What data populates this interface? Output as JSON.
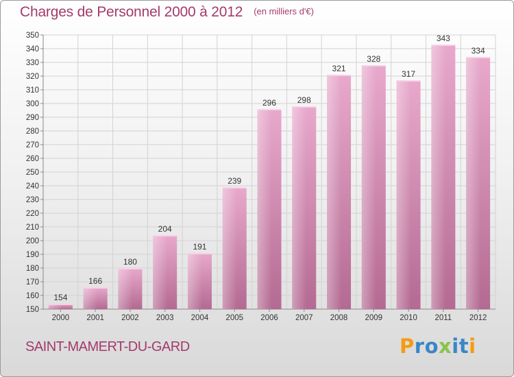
{
  "header": {
    "title": "Charges de Personnel 2000 à 2012",
    "unit": "(en milliers d'€)"
  },
  "footer": {
    "town": "SAINT-MAMERT-DU-GARD",
    "brand_letters": [
      {
        "char": "P",
        "color": "#f39c12"
      },
      {
        "char": "r",
        "color": "#3a86c8"
      },
      {
        "char": "o",
        "color": "#3a86c8"
      },
      {
        "char": "x",
        "color": "#8bc34a"
      },
      {
        "char": "i",
        "color": "#3a86c8"
      },
      {
        "char": "t",
        "color": "#3a86c8"
      },
      {
        "char": "i",
        "color": "#f39c12"
      }
    ]
  },
  "colors": {
    "bar_light": "#e8a9cc",
    "bar_dark": "#b46a92",
    "title": "#a33a6b",
    "grid": "#d2d2d2"
  },
  "chart_data": {
    "type": "bar",
    "categories": [
      "2000",
      "2001",
      "2002",
      "2003",
      "2004",
      "2005",
      "2006",
      "2007",
      "2008",
      "2009",
      "2010",
      "2011",
      "2012"
    ],
    "values": [
      154,
      166,
      180,
      204,
      191,
      239,
      296,
      298,
      321,
      328,
      317,
      343,
      334
    ],
    "ylim": [
      150,
      350
    ],
    "yticks": [
      150,
      160,
      170,
      180,
      190,
      200,
      210,
      220,
      230,
      240,
      250,
      260,
      270,
      280,
      290,
      300,
      310,
      320,
      330,
      340,
      350
    ],
    "grid": true,
    "data_labels": true
  }
}
